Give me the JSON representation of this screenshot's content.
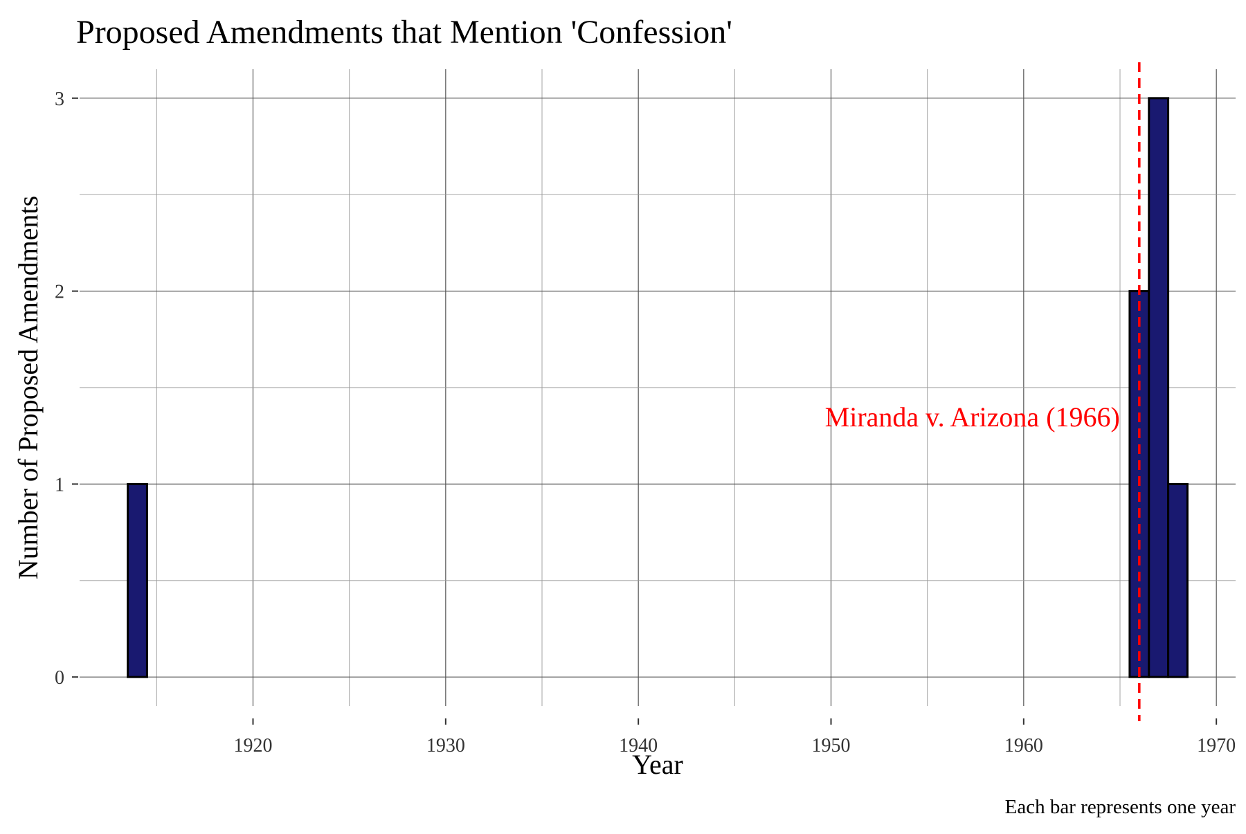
{
  "chart_data": {
    "type": "bar",
    "title": "Proposed Amendments that Mention 'Confession'",
    "xlabel": "Year",
    "ylabel": "Number of Proposed Amendments",
    "caption": "Each bar represents one year",
    "xlim": [
      1911,
      1971
    ],
    "ylim": [
      -0.15,
      3.15
    ],
    "x_ticks": [
      1920,
      1930,
      1940,
      1950,
      1960,
      1970
    ],
    "y_ticks": [
      0,
      1,
      2,
      3
    ],
    "bin_width": 1,
    "x": [
      1914,
      1915,
      1916,
      1917,
      1918,
      1919,
      1920,
      1921,
      1922,
      1923,
      1924,
      1925,
      1926,
      1927,
      1928,
      1929,
      1930,
      1931,
      1932,
      1933,
      1934,
      1935,
      1936,
      1937,
      1938,
      1939,
      1940,
      1941,
      1942,
      1943,
      1944,
      1945,
      1946,
      1947,
      1948,
      1949,
      1950,
      1951,
      1952,
      1953,
      1954,
      1955,
      1956,
      1957,
      1958,
      1959,
      1960,
      1961,
      1962,
      1963,
      1964,
      1965,
      1966,
      1967,
      1968
    ],
    "values": [
      1,
      0,
      0,
      0,
      0,
      0,
      0,
      0,
      0,
      0,
      0,
      0,
      0,
      0,
      0,
      0,
      0,
      0,
      0,
      0,
      0,
      0,
      0,
      0,
      0,
      0,
      0,
      0,
      0,
      0,
      0,
      0,
      0,
      0,
      0,
      0,
      0,
      0,
      0,
      0,
      0,
      0,
      0,
      0,
      0,
      0,
      0,
      0,
      0,
      0,
      0,
      0,
      2,
      3,
      1
    ],
    "bar_color": "#191970",
    "bar_outline": "#000000",
    "grid": true,
    "annotation": {
      "text": "Miranda v. Arizona (1966)",
      "x": 1966,
      "y": 1.3,
      "color": "#ff0000",
      "line_style": "dashed"
    }
  }
}
